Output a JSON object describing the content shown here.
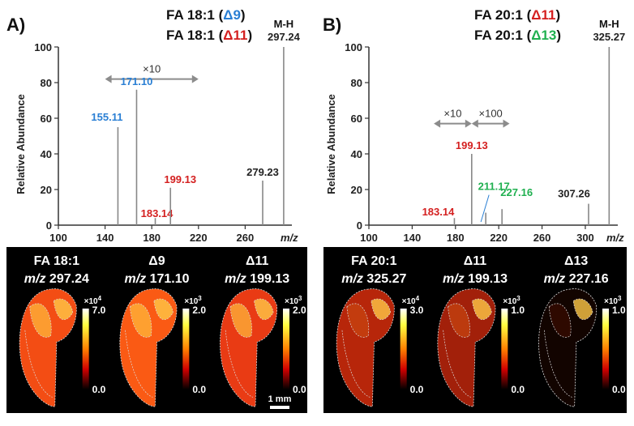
{
  "colors": {
    "delta9": "#2a7fd4",
    "delta11": "#d42020",
    "delta13": "#20b050",
    "axis": "#333333",
    "peak": "#888888",
    "arrow": "#8c8c8c"
  },
  "chart_data": [
    {
      "type": "bar",
      "panel_letter": "A)",
      "title_lines": [
        {
          "prefix": "FA 18:1 (",
          "delta": "Δ9",
          "suffix": ")",
          "delta_color": "#2a7fd4"
        },
        {
          "prefix": "FA 18:1 (",
          "delta": "Δ11",
          "suffix": ")",
          "delta_color": "#d42020"
        }
      ],
      "ylabel": "Relative Abundance",
      "xlabel": "m/z",
      "xlim": [
        100,
        300
      ],
      "ylim": [
        0,
        100
      ],
      "xticks": [
        100,
        140,
        180,
        220,
        260
      ],
      "yticks": [
        0,
        20,
        40,
        60,
        80,
        100
      ],
      "scale_notes": [
        {
          "text": "×10",
          "x_from": 140,
          "x_to": 220,
          "y": 82
        }
      ],
      "peaks": [
        {
          "mz": 151,
          "value": 55,
          "label": "155.11",
          "label_color": "#2a7fd4"
        },
        {
          "mz": 167,
          "value": 76,
          "label": "171.10",
          "label_color": "#2a7fd4"
        },
        {
          "mz": 183,
          "value": 4,
          "label": "183.14",
          "label_color": "#d42020"
        },
        {
          "mz": 196,
          "value": 21,
          "label": "199.13",
          "label_color": "#d42020"
        },
        {
          "mz": 275,
          "value": 25,
          "label": "279.23",
          "label_color": "#222222"
        },
        {
          "mz": 293,
          "value": 100,
          "label": "297.24",
          "label_color": "#222222",
          "label_top": "M-H"
        }
      ],
      "images": [
        {
          "name": "FA 18:1",
          "mz": "m/z 297.24",
          "scale_max": "7.0",
          "scale_min": "0.0",
          "exponent": "×10",
          "exp_power": "4",
          "brightness": 0.85
        },
        {
          "name": "Δ9",
          "mz": "m/z 171.10",
          "scale_max": "2.0",
          "scale_min": "0.0",
          "exponent": "×10",
          "exp_power": "3",
          "brightness": 1.0
        },
        {
          "name": "Δ11",
          "mz": "m/z 199.13",
          "scale_max": "2.0",
          "scale_min": "0.0",
          "exponent": "×10",
          "exp_power": "3",
          "brightness": 0.65
        }
      ],
      "scale_bar": "1 mm"
    },
    {
      "type": "bar",
      "panel_letter": "B)",
      "title_lines": [
        {
          "prefix": "FA 20:1 (",
          "delta": "Δ11",
          "suffix": ")",
          "delta_color": "#d42020"
        },
        {
          "prefix": "FA 20:1 (",
          "delta": "Δ13",
          "suffix": ")",
          "delta_color": "#20b050"
        }
      ],
      "ylabel": "Relative Abundance",
      "xlabel": "m/z",
      "xlim": [
        100,
        330
      ],
      "ylim": [
        0,
        100
      ],
      "xticks": [
        100,
        140,
        180,
        220,
        260,
        300
      ],
      "yticks": [
        0,
        20,
        40,
        60,
        80,
        100
      ],
      "scale_notes": [
        {
          "text": "×10",
          "x_from": 160,
          "x_to": 195,
          "y": 57
        },
        {
          "text": "×100",
          "x_from": 195,
          "x_to": 230,
          "y": 57
        }
      ],
      "peaks": [
        {
          "mz": 179,
          "value": 4,
          "label": "183.14",
          "label_color": "#d42020"
        },
        {
          "mz": 195,
          "value": 40,
          "label": "199.13",
          "label_color": "#d42020"
        },
        {
          "mz": 208,
          "value": 7,
          "label": "211.17",
          "label_color": "#20b050"
        },
        {
          "mz": 223,
          "value": 9,
          "label": "227.16",
          "label_color": "#20b050"
        },
        {
          "mz": 303,
          "value": 12,
          "label": "307.26",
          "label_color": "#222222"
        },
        {
          "mz": 322,
          "value": 100,
          "label": "325.27",
          "label_color": "#222222",
          "label_top": "M-H"
        }
      ],
      "images": [
        {
          "name": "FA 20:1",
          "mz": "m/z 325.27",
          "scale_max": "3.0",
          "scale_min": "0.0",
          "exponent": "×10",
          "exp_power": "4",
          "brightness": 0.45
        },
        {
          "name": "Δ11",
          "mz": "m/z 199.13",
          "scale_max": "1.0",
          "scale_min": "0.0",
          "exponent": "×10",
          "exp_power": "3",
          "brightness": 0.3
        },
        {
          "name": "Δ13",
          "mz": "m/z 227.16",
          "scale_max": "1.0",
          "scale_min": "0.0",
          "exponent": "×10",
          "exp_power": "3",
          "brightness": 0.12
        }
      ],
      "scale_bar": ""
    }
  ]
}
